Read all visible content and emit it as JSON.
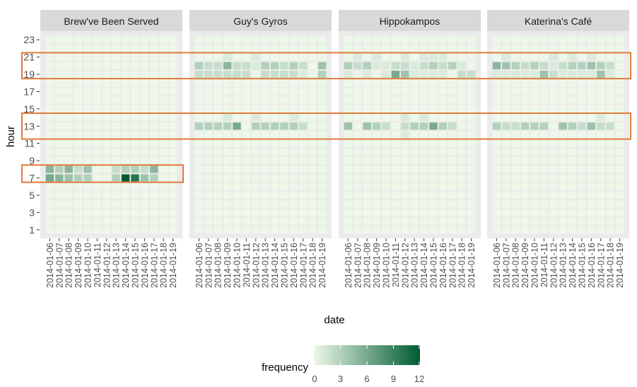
{
  "chart_data": {
    "type": "heatmap",
    "title": "",
    "xlabel": "date",
    "ylabel": "hour",
    "legend": {
      "title": "frequency",
      "position": "bottom",
      "ticks": [
        0,
        3,
        6,
        9,
        12
      ],
      "min": 0,
      "max": 12
    },
    "colors": {
      "low": "#edf8e9",
      "high": "#005a32",
      "panel_bg": "#ebebeb",
      "strip_bg": "#d9d9d9",
      "highlight_box": "#e07b39"
    },
    "y_ticks": [
      1,
      3,
      5,
      7,
      9,
      11,
      13,
      15,
      17,
      19,
      21,
      23
    ],
    "y_range": [
      0,
      24
    ],
    "dates": [
      "2014-01-06",
      "2014-01-07",
      "2014-01-08",
      "2014-01-09",
      "2014-01-10",
      "2014-01-11",
      "2014-01-12",
      "2014-01-13",
      "2014-01-14",
      "2014-01-15",
      "2014-01-16",
      "2014-01-17",
      "2014-01-18",
      "2014-01-19"
    ],
    "panels": [
      {
        "name": "Brew've Been Served",
        "cells": [
          {
            "date": "2014-01-06",
            "hour": 7,
            "value": 6
          },
          {
            "date": "2014-01-07",
            "hour": 7,
            "value": 5
          },
          {
            "date": "2014-01-08",
            "hour": 7,
            "value": 4
          },
          {
            "date": "2014-01-09",
            "hour": 7,
            "value": 3
          },
          {
            "date": "2014-01-10",
            "hour": 7,
            "value": 3
          },
          {
            "date": "2014-01-13",
            "hour": 7,
            "value": 3
          },
          {
            "date": "2014-01-14",
            "hour": 7,
            "value": 12
          },
          {
            "date": "2014-01-15",
            "hour": 7,
            "value": 10
          },
          {
            "date": "2014-01-16",
            "hour": 7,
            "value": 4
          },
          {
            "date": "2014-01-17",
            "hour": 7,
            "value": 3
          },
          {
            "date": "2014-01-06",
            "hour": 8,
            "value": 5
          },
          {
            "date": "2014-01-07",
            "hour": 8,
            "value": 3
          },
          {
            "date": "2014-01-08",
            "hour": 8,
            "value": 5
          },
          {
            "date": "2014-01-09",
            "hour": 8,
            "value": 2
          },
          {
            "date": "2014-01-10",
            "hour": 8,
            "value": 4
          },
          {
            "date": "2014-01-13",
            "hour": 8,
            "value": 2
          },
          {
            "date": "2014-01-14",
            "hour": 8,
            "value": 3
          },
          {
            "date": "2014-01-15",
            "hour": 8,
            "value": 3
          },
          {
            "date": "2014-01-16",
            "hour": 8,
            "value": 2
          },
          {
            "date": "2014-01-17",
            "hour": 8,
            "value": 5
          }
        ],
        "highlights": [
          {
            "hour_min": 6.5,
            "hour_max": 8.5
          }
        ]
      },
      {
        "name": "Guy's Gyros",
        "cells": [
          {
            "date": "2014-01-06",
            "hour": 13,
            "value": 3
          },
          {
            "date": "2014-01-07",
            "hour": 13,
            "value": 3
          },
          {
            "date": "2014-01-08",
            "hour": 13,
            "value": 3
          },
          {
            "date": "2014-01-09",
            "hour": 13,
            "value": 3
          },
          {
            "date": "2014-01-10",
            "hour": 13,
            "value": 6
          },
          {
            "date": "2014-01-12",
            "hour": 13,
            "value": 3
          },
          {
            "date": "2014-01-13",
            "hour": 13,
            "value": 3
          },
          {
            "date": "2014-01-14",
            "hour": 13,
            "value": 3
          },
          {
            "date": "2014-01-15",
            "hour": 13,
            "value": 3
          },
          {
            "date": "2014-01-16",
            "hour": 13,
            "value": 3
          },
          {
            "date": "2014-01-17",
            "hour": 13,
            "value": 2
          },
          {
            "date": "2014-01-09",
            "hour": 14,
            "value": 1
          },
          {
            "date": "2014-01-12",
            "hour": 14,
            "value": 1
          },
          {
            "date": "2014-01-16",
            "hour": 14,
            "value": 1
          },
          {
            "date": "2014-01-06",
            "hour": 19,
            "value": 2
          },
          {
            "date": "2014-01-07",
            "hour": 19,
            "value": 2
          },
          {
            "date": "2014-01-08",
            "hour": 19,
            "value": 2
          },
          {
            "date": "2014-01-09",
            "hour": 19,
            "value": 2
          },
          {
            "date": "2014-01-10",
            "hour": 19,
            "value": 2
          },
          {
            "date": "2014-01-11",
            "hour": 19,
            "value": 2
          },
          {
            "date": "2014-01-13",
            "hour": 19,
            "value": 2
          },
          {
            "date": "2014-01-14",
            "hour": 19,
            "value": 2
          },
          {
            "date": "2014-01-15",
            "hour": 19,
            "value": 2
          },
          {
            "date": "2014-01-16",
            "hour": 19,
            "value": 2
          },
          {
            "date": "2014-01-17",
            "hour": 19,
            "value": 1
          },
          {
            "date": "2014-01-19",
            "hour": 19,
            "value": 3
          },
          {
            "date": "2014-01-06",
            "hour": 20,
            "value": 3
          },
          {
            "date": "2014-01-07",
            "hour": 20,
            "value": 2
          },
          {
            "date": "2014-01-08",
            "hour": 20,
            "value": 2
          },
          {
            "date": "2014-01-09",
            "hour": 20,
            "value": 5
          },
          {
            "date": "2014-01-10",
            "hour": 20,
            "value": 2
          },
          {
            "date": "2014-01-11",
            "hour": 20,
            "value": 2
          },
          {
            "date": "2014-01-12",
            "hour": 20,
            "value": 1
          },
          {
            "date": "2014-01-13",
            "hour": 20,
            "value": 3
          },
          {
            "date": "2014-01-14",
            "hour": 20,
            "value": 3
          },
          {
            "date": "2014-01-15",
            "hour": 20,
            "value": 2
          },
          {
            "date": "2014-01-16",
            "hour": 20,
            "value": 3
          },
          {
            "date": "2014-01-17",
            "hour": 20,
            "value": 2
          },
          {
            "date": "2014-01-19",
            "hour": 20,
            "value": 4
          },
          {
            "date": "2014-01-09",
            "hour": 21,
            "value": 1
          },
          {
            "date": "2014-01-12",
            "hour": 21,
            "value": 1
          }
        ],
        "highlights": []
      },
      {
        "name": "Hippokampos",
        "cells": [
          {
            "date": "2014-01-06",
            "hour": 13,
            "value": 4
          },
          {
            "date": "2014-01-08",
            "hour": 13,
            "value": 4
          },
          {
            "date": "2014-01-09",
            "hour": 13,
            "value": 3
          },
          {
            "date": "2014-01-10",
            "hour": 13,
            "value": 2
          },
          {
            "date": "2014-01-12",
            "hour": 13,
            "value": 2
          },
          {
            "date": "2014-01-13",
            "hour": 13,
            "value": 3
          },
          {
            "date": "2014-01-14",
            "hour": 13,
            "value": 3
          },
          {
            "date": "2014-01-15",
            "hour": 13,
            "value": 6
          },
          {
            "date": "2014-01-16",
            "hour": 13,
            "value": 3
          },
          {
            "date": "2014-01-17",
            "hour": 13,
            "value": 2
          },
          {
            "date": "2014-01-12",
            "hour": 12,
            "value": 1
          },
          {
            "date": "2014-01-12",
            "hour": 14,
            "value": 1
          },
          {
            "date": "2014-01-14",
            "hour": 14,
            "value": 1
          },
          {
            "date": "2014-01-06",
            "hour": 19,
            "value": 1
          },
          {
            "date": "2014-01-08",
            "hour": 19,
            "value": 1
          },
          {
            "date": "2014-01-10",
            "hour": 19,
            "value": 1
          },
          {
            "date": "2014-01-11",
            "hour": 19,
            "value": 6
          },
          {
            "date": "2014-01-12",
            "hour": 19,
            "value": 4
          },
          {
            "date": "2014-01-13",
            "hour": 19,
            "value": 1
          },
          {
            "date": "2014-01-14",
            "hour": 19,
            "value": 1
          },
          {
            "date": "2014-01-15",
            "hour": 19,
            "value": 1
          },
          {
            "date": "2014-01-16",
            "hour": 19,
            "value": 1
          },
          {
            "date": "2014-01-18",
            "hour": 19,
            "value": 2
          },
          {
            "date": "2014-01-19",
            "hour": 19,
            "value": 2
          },
          {
            "date": "2014-01-06",
            "hour": 20,
            "value": 3
          },
          {
            "date": "2014-01-07",
            "hour": 20,
            "value": 2
          },
          {
            "date": "2014-01-08",
            "hour": 20,
            "value": 3
          },
          {
            "date": "2014-01-09",
            "hour": 20,
            "value": 1
          },
          {
            "date": "2014-01-10",
            "hour": 20,
            "value": 1
          },
          {
            "date": "2014-01-11",
            "hour": 20,
            "value": 2
          },
          {
            "date": "2014-01-12",
            "hour": 20,
            "value": 2
          },
          {
            "date": "2014-01-13",
            "hour": 20,
            "value": 1
          },
          {
            "date": "2014-01-14",
            "hour": 20,
            "value": 2
          },
          {
            "date": "2014-01-15",
            "hour": 20,
            "value": 3
          },
          {
            "date": "2014-01-16",
            "hour": 20,
            "value": 2
          },
          {
            "date": "2014-01-17",
            "hour": 20,
            "value": 3
          },
          {
            "date": "2014-01-18",
            "hour": 20,
            "value": 1
          },
          {
            "date": "2014-01-07",
            "hour": 21,
            "value": 1
          },
          {
            "date": "2014-01-09",
            "hour": 21,
            "value": 1
          },
          {
            "date": "2014-01-12",
            "hour": 21,
            "value": 1
          },
          {
            "date": "2014-01-14",
            "hour": 21,
            "value": 1
          },
          {
            "date": "2014-01-15",
            "hour": 21,
            "value": 1
          },
          {
            "date": "2014-01-16",
            "hour": 21,
            "value": 1
          }
        ],
        "highlights": []
      },
      {
        "name": "Katerina's Café",
        "cells": [
          {
            "date": "2014-01-06",
            "hour": 13,
            "value": 3
          },
          {
            "date": "2014-01-07",
            "hour": 13,
            "value": 2
          },
          {
            "date": "2014-01-08",
            "hour": 13,
            "value": 2
          },
          {
            "date": "2014-01-09",
            "hour": 13,
            "value": 3
          },
          {
            "date": "2014-01-10",
            "hour": 13,
            "value": 3
          },
          {
            "date": "2014-01-11",
            "hour": 13,
            "value": 3
          },
          {
            "date": "2014-01-13",
            "hour": 13,
            "value": 4
          },
          {
            "date": "2014-01-14",
            "hour": 13,
            "value": 3
          },
          {
            "date": "2014-01-15",
            "hour": 13,
            "value": 2
          },
          {
            "date": "2014-01-16",
            "hour": 13,
            "value": 4
          },
          {
            "date": "2014-01-17",
            "hour": 13,
            "value": 2
          },
          {
            "date": "2014-01-18",
            "hour": 13,
            "value": 2
          },
          {
            "date": "2014-01-17",
            "hour": 14,
            "value": 1
          },
          {
            "date": "2014-01-06",
            "hour": 19,
            "value": 1
          },
          {
            "date": "2014-01-07",
            "hour": 19,
            "value": 1
          },
          {
            "date": "2014-01-08",
            "hour": 19,
            "value": 1
          },
          {
            "date": "2014-01-09",
            "hour": 19,
            "value": 1
          },
          {
            "date": "2014-01-10",
            "hour": 19,
            "value": 1
          },
          {
            "date": "2014-01-11",
            "hour": 19,
            "value": 4
          },
          {
            "date": "2014-01-12",
            "hour": 19,
            "value": 2
          },
          {
            "date": "2014-01-13",
            "hour": 19,
            "value": 1
          },
          {
            "date": "2014-01-14",
            "hour": 19,
            "value": 1
          },
          {
            "date": "2014-01-15",
            "hour": 19,
            "value": 1
          },
          {
            "date": "2014-01-16",
            "hour": 19,
            "value": 1
          },
          {
            "date": "2014-01-17",
            "hour": 19,
            "value": 4
          },
          {
            "date": "2014-01-18",
            "hour": 19,
            "value": 1
          },
          {
            "date": "2014-01-06",
            "hour": 20,
            "value": 5
          },
          {
            "date": "2014-01-07",
            "hour": 20,
            "value": 4
          },
          {
            "date": "2014-01-08",
            "hour": 20,
            "value": 3
          },
          {
            "date": "2014-01-09",
            "hour": 20,
            "value": 2
          },
          {
            "date": "2014-01-10",
            "hour": 20,
            "value": 3
          },
          {
            "date": "2014-01-11",
            "hour": 20,
            "value": 2
          },
          {
            "date": "2014-01-12",
            "hour": 20,
            "value": 1
          },
          {
            "date": "2014-01-13",
            "hour": 20,
            "value": 2
          },
          {
            "date": "2014-01-14",
            "hour": 20,
            "value": 3
          },
          {
            "date": "2014-01-15",
            "hour": 20,
            "value": 3
          },
          {
            "date": "2014-01-16",
            "hour": 20,
            "value": 4
          },
          {
            "date": "2014-01-17",
            "hour": 20,
            "value": 3
          },
          {
            "date": "2014-01-18",
            "hour": 20,
            "value": 2
          },
          {
            "date": "2014-01-07",
            "hour": 21,
            "value": 1
          },
          {
            "date": "2014-01-12",
            "hour": 21,
            "value": 1
          },
          {
            "date": "2014-01-14",
            "hour": 21,
            "value": 1
          },
          {
            "date": "2014-01-16",
            "hour": 21,
            "value": 1
          }
        ],
        "highlights": []
      }
    ],
    "global_highlights": [
      {
        "hour_min": 18.5,
        "hour_max": 21.5
      },
      {
        "hour_min": 11.5,
        "hour_max": 14.5
      }
    ]
  }
}
